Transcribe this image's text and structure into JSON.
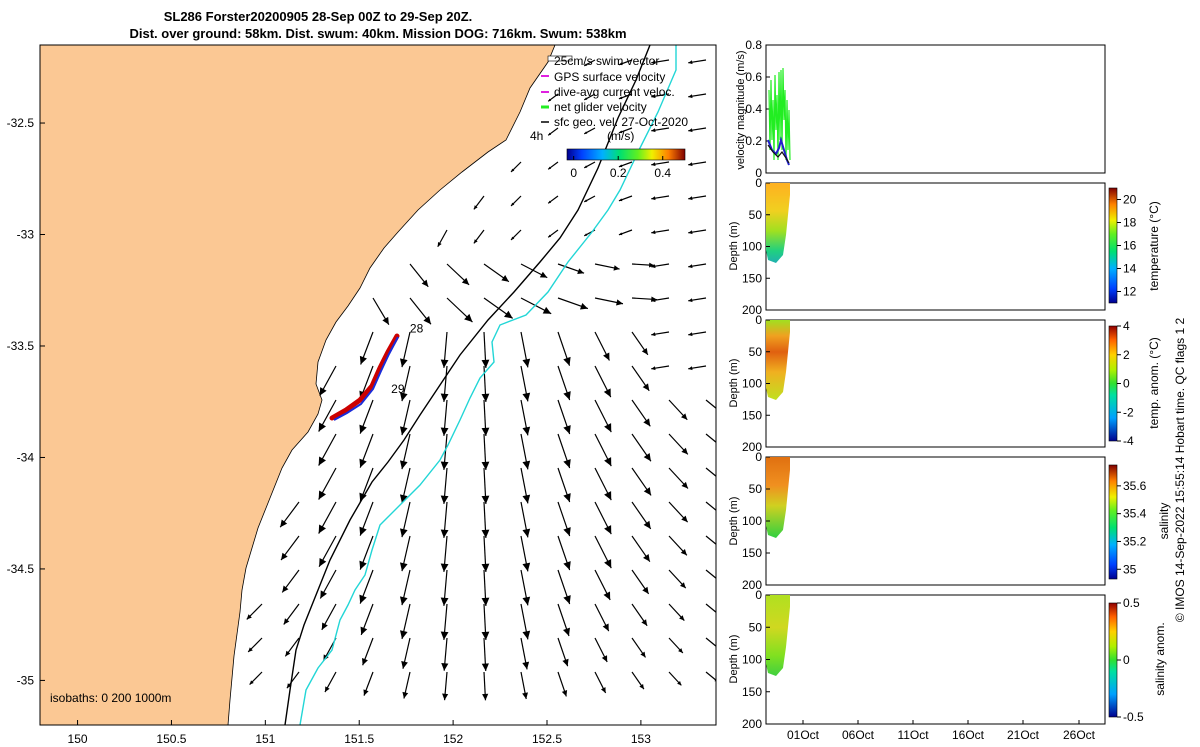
{
  "title_line1": "SL286 Forster20200905 28-Sep 00Z to 29-Sep 20Z.",
  "title_line2": "Dist. over ground: 58km. Dist. swum: 40km. Mission DOG: 716km. Swum: 538km",
  "copyright": "© IMOS 14-Sep-2022 15:55:14 Hobart time. QC flags 1  2",
  "colors": {
    "land": "#fbc894",
    "glider_track": "#cc0000",
    "glider_track_inner": "#1a2bd8",
    "isobath_200": "#000000",
    "isobath_1000": "#22d6d6",
    "current_vectors": "#000000",
    "velocity_net": "#22ee22",
    "velocity_dive_avg": "#2020cc"
  },
  "chart_data": [
    {
      "type": "map",
      "x_ticks": [
        "150",
        "150.5",
        "151",
        "151.5",
        "152",
        "152.5",
        "153"
      ],
      "x_tick_values": [
        150,
        150.5,
        151,
        151.5,
        152,
        152.5,
        153
      ],
      "y_ticks": [
        "-32.5",
        "-33",
        "-33.5",
        "-34",
        "-34.5",
        "-35"
      ],
      "y_tick_values": [
        -32.5,
        -33,
        -33.5,
        -34,
        -34.5,
        -35
      ],
      "xlim": [
        149.8,
        153.4
      ],
      "ylim": [
        -35.2,
        -32.15
      ],
      "legend": {
        "placement": "top-right",
        "entries": [
          "25cm/s swim vector",
          "GPS surface velocity",
          "dive-avg current veloc.",
          "net glider velocity",
          "sfc geo. vel. 27-Oct-2020"
        ],
        "time_label": "4h"
      },
      "colorbar": {
        "label": "(m/s)",
        "ticks": [
          "0",
          "0.2",
          "0.4"
        ],
        "tick_values": [
          0,
          0.2,
          0.4
        ],
        "range": [
          -0.03,
          0.5
        ]
      },
      "isobaths_label": "isobaths: 0   200  1000m",
      "day_labels": [
        {
          "text": "28",
          "lon": 151.77,
          "lat": -33.44
        },
        {
          "text": "29",
          "lon": 151.67,
          "lat": -33.71
        }
      ],
      "glider_track": [
        [
          151.73,
          -33.43
        ],
        [
          151.62,
          -33.6
        ],
        [
          151.52,
          -33.76
        ],
        [
          151.38,
          -33.8
        ]
      ]
    },
    {
      "type": "line",
      "ylabel": "velocity magnitude (m/s)",
      "ylim": [
        0,
        0.8
      ],
      "y_ticks": [
        "0",
        "0.2",
        "0.4",
        "0.6",
        "0.8"
      ],
      "y_tick_values": [
        0,
        0.2,
        0.4,
        0.6,
        0.8
      ]
    },
    {
      "type": "heatmap",
      "ylabel": "Depth (m)",
      "ylim": [
        200,
        0
      ],
      "y_ticks": [
        "0",
        "50",
        "100",
        "150",
        "200"
      ],
      "y_tick_values": [
        0,
        50,
        100,
        150,
        200
      ],
      "colorbar_label": "temperature (°C)",
      "colorbar_ticks": [
        "12",
        "14",
        "16",
        "18",
        "20"
      ],
      "colorbar_tick_values": [
        12,
        14,
        16,
        18,
        20
      ],
      "colorbar_range": [
        11,
        21
      ]
    },
    {
      "type": "heatmap",
      "ylabel": "Depth (m)",
      "ylim": [
        200,
        0
      ],
      "y_ticks": [
        "0",
        "50",
        "100",
        "150",
        "200"
      ],
      "y_tick_values": [
        0,
        50,
        100,
        150,
        200
      ],
      "colorbar_label": "temp. anom. (°C)",
      "colorbar_ticks": [
        "-4",
        "-2",
        "0",
        "2",
        "4"
      ],
      "colorbar_tick_values": [
        -4,
        -2,
        0,
        2,
        4
      ],
      "colorbar_range": [
        -4,
        4
      ]
    },
    {
      "type": "heatmap",
      "ylabel": "Depth (m)",
      "ylim": [
        200,
        0
      ],
      "y_ticks": [
        "0",
        "50",
        "100",
        "150",
        "200"
      ],
      "y_tick_values": [
        0,
        50,
        100,
        150,
        200
      ],
      "colorbar_label": "salinity",
      "colorbar_ticks": [
        "35",
        "35.2",
        "35.4",
        "35.6"
      ],
      "colorbar_tick_values": [
        35,
        35.2,
        35.4,
        35.6
      ],
      "colorbar_range": [
        34.93,
        35.75
      ]
    },
    {
      "type": "heatmap",
      "ylabel": "Depth (m)",
      "ylim": [
        200,
        0
      ],
      "y_ticks": [
        "0",
        "50",
        "100",
        "150",
        "200"
      ],
      "y_tick_values": [
        0,
        50,
        100,
        150,
        200
      ],
      "colorbar_label": "salinity anom.",
      "colorbar_ticks": [
        "-0.5",
        "0",
        "0.5"
      ],
      "colorbar_tick_values": [
        -0.5,
        0,
        0.5
      ],
      "colorbar_range": [
        -0.5,
        0.5
      ],
      "x_ticks": [
        "01Oct",
        "06Oct",
        "11Oct",
        "16Oct",
        "21Oct",
        "26Oct"
      ]
    }
  ]
}
